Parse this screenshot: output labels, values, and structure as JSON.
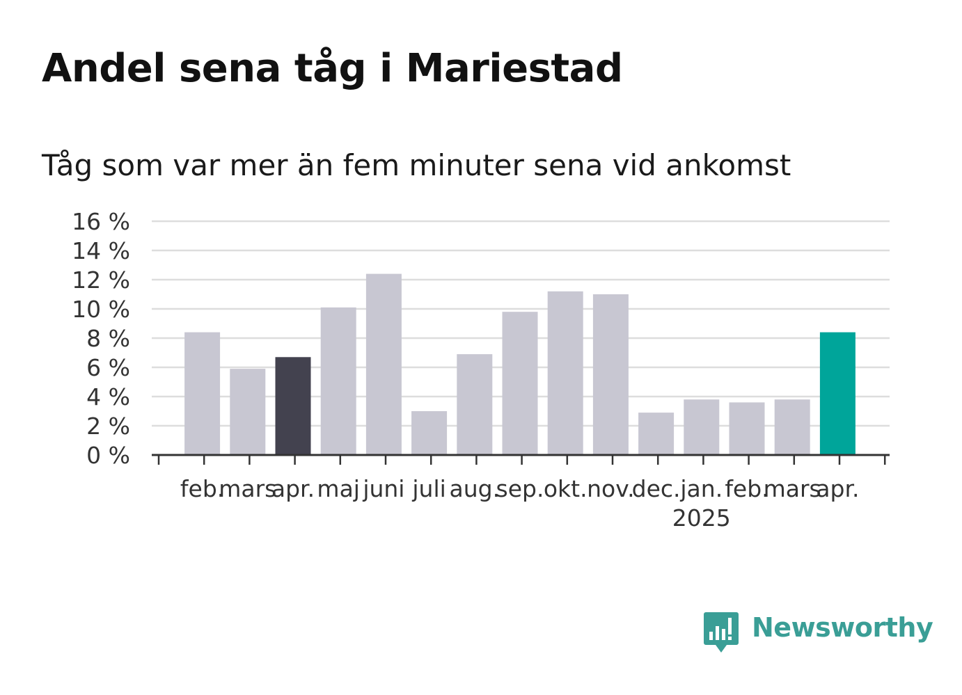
{
  "title": "Andel sena tåg i Mariestad",
  "subtitle": "Tåg som var mer än fem minuter sena vid ankomst",
  "brand": {
    "name": "Newsworthy",
    "icon": "newsworthy-logo-icon"
  },
  "colors": {
    "bar": "#c8c7d2",
    "highlight_dark": "#43424f",
    "highlight_accent": "#00a59a",
    "grid": "#dddddd",
    "axis": "#333333"
  },
  "chart_data": {
    "type": "bar",
    "title": "Andel sena tåg i Mariestad",
    "subtitle": "Tåg som var mer än fem minuter sena vid ankomst",
    "categories": [
      "feb.",
      "mars",
      "apr.",
      "maj",
      "juni",
      "juli",
      "aug.",
      "sep.",
      "okt.",
      "nov.",
      "dec.",
      "jan.",
      "feb.",
      "mars",
      "apr."
    ],
    "year_labels": [
      {
        "index": 11,
        "label": "2025"
      }
    ],
    "values": [
      8.4,
      5.9,
      6.7,
      10.1,
      12.4,
      3.0,
      6.9,
      9.8,
      11.2,
      11.0,
      2.9,
      3.8,
      3.6,
      3.8,
      8.4
    ],
    "highlight": [
      {
        "index": 2,
        "color": "#43424f"
      },
      {
        "index": 14,
        "color": "#00a59a"
      }
    ],
    "ylim": [
      0,
      16
    ],
    "yticks": [
      0,
      2,
      4,
      6,
      8,
      10,
      12,
      14,
      16
    ],
    "ytick_labels": [
      "0 %",
      "2 %",
      "4 %",
      "6 %",
      "8 %",
      "10 %",
      "12 %",
      "14 %",
      "16 %"
    ],
    "grid": true,
    "xlabel": "",
    "ylabel": ""
  }
}
